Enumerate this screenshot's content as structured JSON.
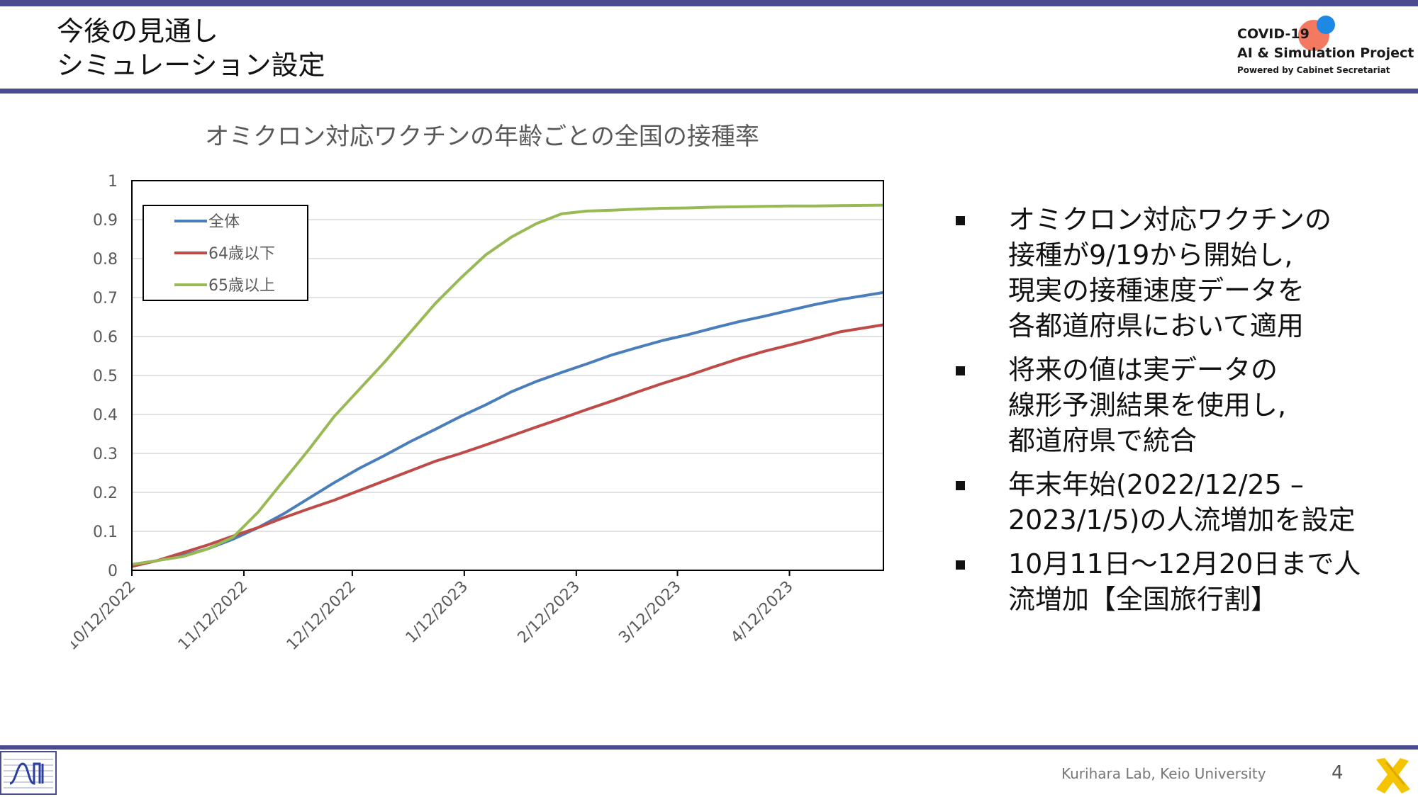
{
  "header": {
    "title_line1": "今後の見通し",
    "title_line2": "シミュレーション設定"
  },
  "logo": {
    "line1": "COVID-19",
    "line2": "AI & Simulation Project",
    "line3": "Powered by Cabinet Secretariat"
  },
  "chart_data": {
    "type": "line",
    "title": "オミクロン対応ワクチンの年齢ごとの全国の接種率",
    "xlabel": "",
    "ylabel": "",
    "ylim": [
      0,
      1
    ],
    "yticks": [
      "0",
      "0.1",
      "0.2",
      "0.3",
      "0.4",
      "0.5",
      "0.6",
      "0.7",
      "0.8",
      "0.9",
      "1"
    ],
    "xlim": [
      "2022-10-12",
      "2023-05-08"
    ],
    "xticks": [
      "10/12/2022",
      "11/12/2022",
      "12/12/2022",
      "1/12/2023",
      "2/12/2023",
      "3/12/2023",
      "4/12/2023"
    ],
    "grid": true,
    "legend_position": "top-left",
    "series": [
      {
        "name": "全体",
        "color": "#4a7ebb",
        "x": [
          "2022-10-12",
          "2022-10-19",
          "2022-10-26",
          "2022-11-02",
          "2022-11-09",
          "2022-11-16",
          "2022-11-23",
          "2022-11-30",
          "2022-12-07",
          "2022-12-14",
          "2022-12-21",
          "2022-12-28",
          "2023-01-04",
          "2023-01-11",
          "2023-01-18",
          "2023-01-25",
          "2023-02-01",
          "2023-02-08",
          "2023-02-15",
          "2023-02-22",
          "2023-03-01",
          "2023-03-08",
          "2023-03-15",
          "2023-03-22",
          "2023-03-29",
          "2023-04-05",
          "2023-04-12",
          "2023-04-19",
          "2023-04-26",
          "2023-05-08"
        ],
        "values": [
          0.015,
          0.025,
          0.038,
          0.055,
          0.08,
          0.11,
          0.145,
          0.185,
          0.225,
          0.262,
          0.295,
          0.33,
          0.362,
          0.395,
          0.425,
          0.458,
          0.485,
          0.508,
          0.53,
          0.553,
          0.572,
          0.59,
          0.605,
          0.622,
          0.638,
          0.652,
          0.667,
          0.682,
          0.695,
          0.713
        ]
      },
      {
        "name": "64歳以下",
        "color": "#be4b48",
        "x": [
          "2022-10-12",
          "2022-10-19",
          "2022-10-26",
          "2022-11-02",
          "2022-11-09",
          "2022-11-16",
          "2022-11-23",
          "2022-11-30",
          "2022-12-07",
          "2022-12-14",
          "2022-12-21",
          "2022-12-28",
          "2023-01-04",
          "2023-01-11",
          "2023-01-18",
          "2023-01-25",
          "2023-02-01",
          "2023-02-08",
          "2023-02-15",
          "2023-02-22",
          "2023-03-01",
          "2023-03-08",
          "2023-03-15",
          "2023-03-22",
          "2023-03-29",
          "2023-04-05",
          "2023-04-12",
          "2023-04-19",
          "2023-04-26",
          "2023-05-08"
        ],
        "values": [
          0.01,
          0.025,
          0.045,
          0.065,
          0.088,
          0.11,
          0.135,
          0.158,
          0.18,
          0.205,
          0.23,
          0.255,
          0.28,
          0.3,
          0.322,
          0.345,
          0.368,
          0.39,
          0.413,
          0.435,
          0.458,
          0.48,
          0.5,
          0.522,
          0.543,
          0.562,
          0.578,
          0.595,
          0.612,
          0.63
        ]
      },
      {
        "name": "65歳以上",
        "color": "#98b954",
        "x": [
          "2022-10-12",
          "2022-10-19",
          "2022-10-26",
          "2022-11-02",
          "2022-11-09",
          "2022-11-16",
          "2022-11-23",
          "2022-11-30",
          "2022-12-07",
          "2022-12-14",
          "2022-12-21",
          "2022-12-28",
          "2023-01-04",
          "2023-01-11",
          "2023-01-18",
          "2023-01-25",
          "2023-02-01",
          "2023-02-08",
          "2023-02-15",
          "2023-02-22",
          "2023-03-01",
          "2023-03-08",
          "2023-03-15",
          "2023-03-22",
          "2023-03-29",
          "2023-04-05",
          "2023-04-12",
          "2023-04-19",
          "2023-04-26",
          "2023-05-08"
        ],
        "values": [
          0.015,
          0.025,
          0.035,
          0.055,
          0.085,
          0.15,
          0.23,
          0.31,
          0.395,
          0.465,
          0.535,
          0.61,
          0.685,
          0.75,
          0.81,
          0.855,
          0.89,
          0.915,
          0.922,
          0.924,
          0.927,
          0.929,
          0.93,
          0.932,
          0.933,
          0.934,
          0.935,
          0.935,
          0.936,
          0.937
        ]
      }
    ]
  },
  "bullets": [
    {
      "lines": [
        "オミクロン対応ワクチンの",
        "接種が9/19から開始し,",
        "現実の接種速度データを",
        "各都道府県において適用"
      ]
    },
    {
      "lines": [
        "将来の値は実データの",
        "線形予測結果を使用し,",
        "都道府県で統合"
      ]
    },
    {
      "lines": [
        "年末年始(2022/12/25 –",
        "2023/1/5)の人流増加を設定"
      ]
    },
    {
      "lines": [
        "10月11日～12月20日まで人",
        "流増加【全国旅行割】"
      ]
    }
  ],
  "footer": {
    "credit": "Kurihara Lab, Keio University",
    "page_number": "4"
  }
}
